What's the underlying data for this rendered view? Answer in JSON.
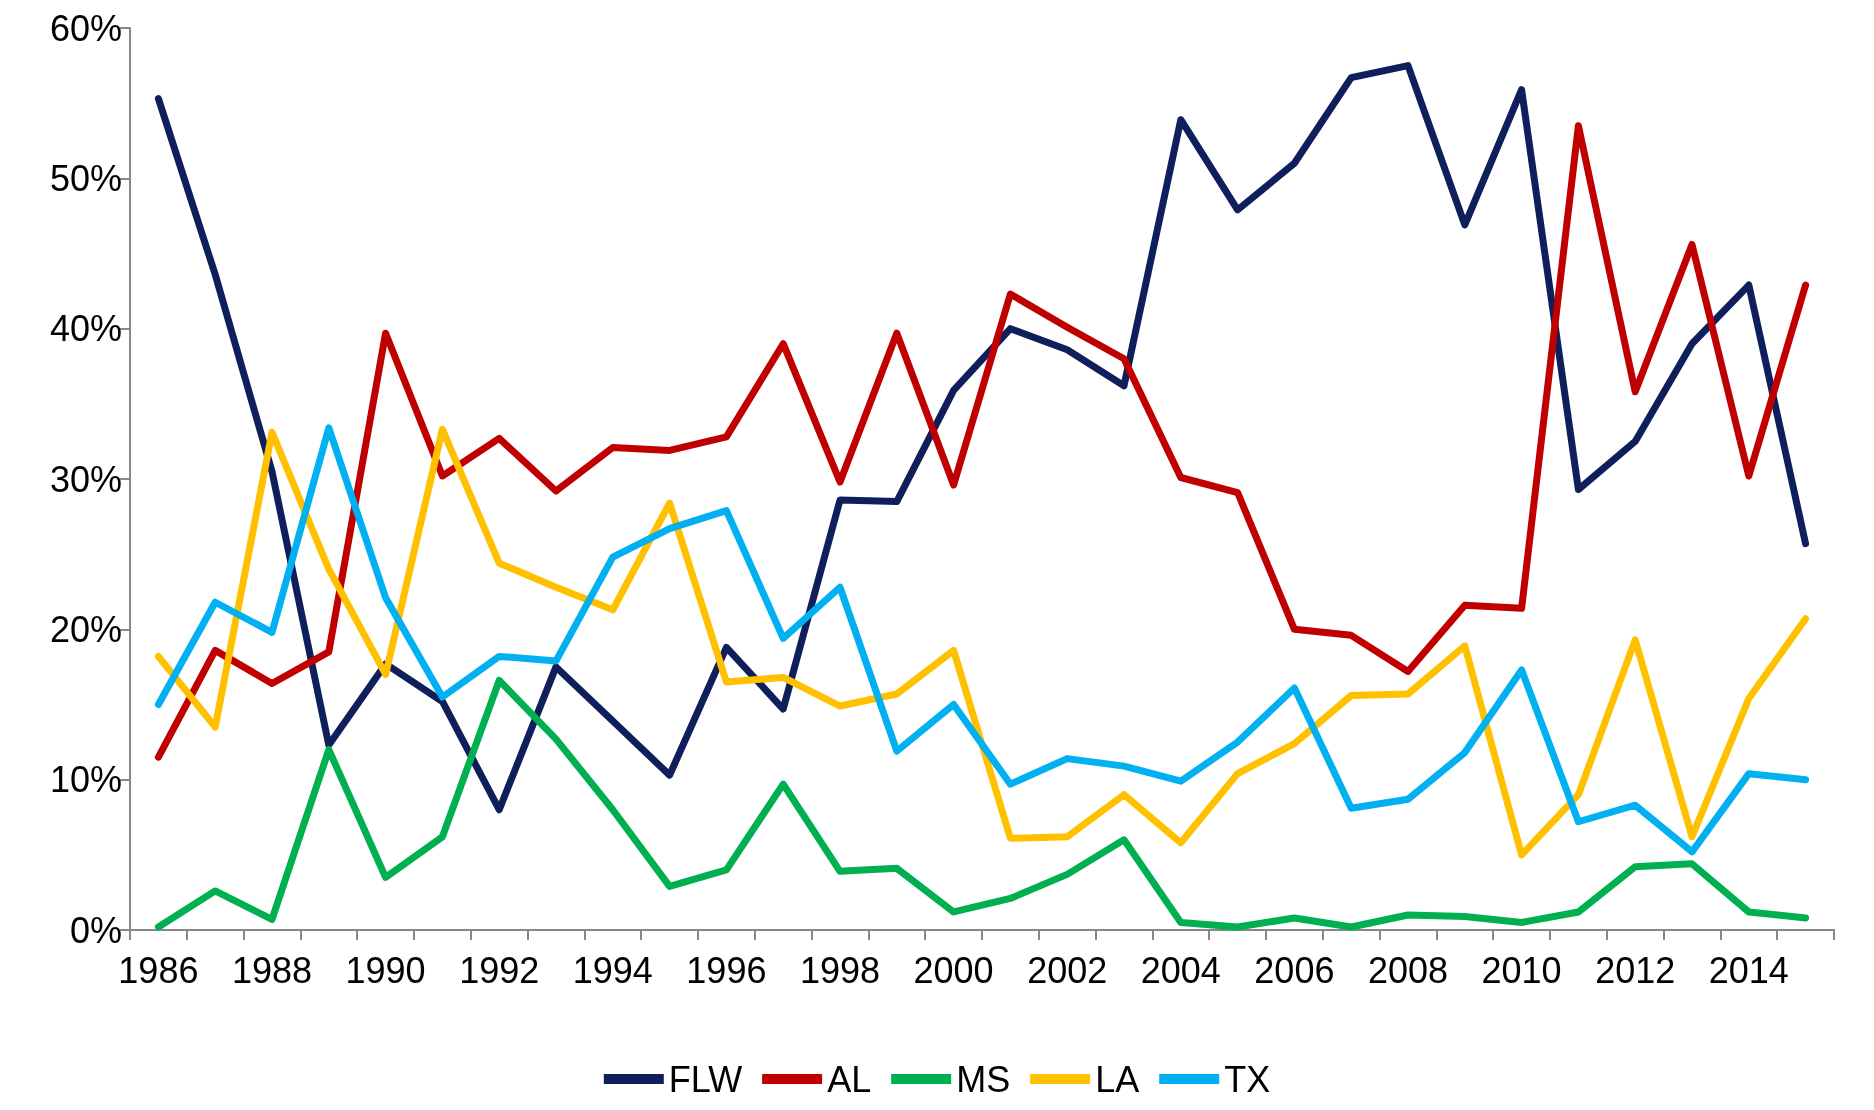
{
  "chart_data": {
    "type": "line",
    "categories": [
      "1986",
      null,
      "1988",
      null,
      "1990",
      null,
      "1992",
      null,
      "1994",
      null,
      "1996",
      null,
      "1998",
      null,
      "2000",
      null,
      "2002",
      null,
      "2004",
      null,
      "2006",
      null,
      "2008",
      null,
      "2010",
      null,
      "2012",
      null,
      "2014",
      null
    ],
    "series": [
      {
        "name": "FLW",
        "color": "#0e1f5b",
        "values": [
          55.3,
          43.6,
          30.5,
          12.3,
          17.7,
          15.2,
          8.0,
          17.5,
          13.9,
          10.3,
          18.8,
          14.7,
          28.6,
          28.5,
          35.9,
          40.0,
          38.6,
          36.2,
          53.9,
          47.9,
          51.0,
          56.7,
          57.5,
          46.9,
          55.9,
          29.3,
          32.5,
          39.0,
          42.9,
          25.7
        ]
      },
      {
        "name": "AL",
        "color": "#c00000",
        "values": [
          11.5,
          18.6,
          16.4,
          18.5,
          39.7,
          30.2,
          32.7,
          29.2,
          32.1,
          31.9,
          32.8,
          39.0,
          29.8,
          39.7,
          29.6,
          42.3,
          40.1,
          38.0,
          30.1,
          29.1,
          20.0,
          19.6,
          17.2,
          21.6,
          21.4,
          53.5,
          35.8,
          45.6,
          30.2,
          42.9
        ]
      },
      {
        "name": "MS",
        "color": "#00b050",
        "values": [
          0.2,
          2.6,
          0.7,
          12.0,
          3.5,
          6.2,
          16.6,
          12.7,
          8.0,
          2.9,
          4.0,
          9.7,
          3.9,
          4.1,
          1.2,
          2.1,
          3.7,
          6.0,
          0.5,
          0.2,
          0.8,
          0.2,
          1.0,
          0.9,
          0.5,
          1.2,
          4.2,
          4.4,
          1.2,
          0.8
        ]
      },
      {
        "name": "LA",
        "color": "#ffc000",
        "values": [
          18.2,
          13.5,
          33.1,
          24.0,
          17.0,
          33.3,
          24.4,
          22.8,
          21.3,
          28.4,
          16.5,
          16.8,
          14.9,
          15.7,
          18.6,
          6.1,
          6.2,
          9.0,
          5.8,
          10.4,
          12.4,
          15.6,
          15.7,
          18.9,
          5.0,
          9.0,
          19.3,
          6.2,
          15.4,
          20.7
        ]
      },
      {
        "name": "TX",
        "color": "#00b0f0",
        "values": [
          15.0,
          21.8,
          19.8,
          33.4,
          22.1,
          15.5,
          18.2,
          17.9,
          24.8,
          26.7,
          27.9,
          19.4,
          22.8,
          11.9,
          15.0,
          9.7,
          11.4,
          10.9,
          9.9,
          12.5,
          16.1,
          8.1,
          8.7,
          11.8,
          17.3,
          7.2,
          8.3,
          5.2,
          10.4,
          10.0
        ]
      }
    ],
    "ylim": [
      0,
      60
    ],
    "yticks": [
      {
        "value": 0,
        "label": "0%"
      },
      {
        "value": 10,
        "label": "10%"
      },
      {
        "value": 20,
        "label": "20%"
      },
      {
        "value": 30,
        "label": "30%"
      },
      {
        "value": 40,
        "label": "40%"
      },
      {
        "value": 50,
        "label": "50%"
      },
      {
        "value": 60,
        "label": "60%"
      }
    ],
    "grid": false,
    "legend": "bottom",
    "marker": "none",
    "line_style": "solid"
  }
}
